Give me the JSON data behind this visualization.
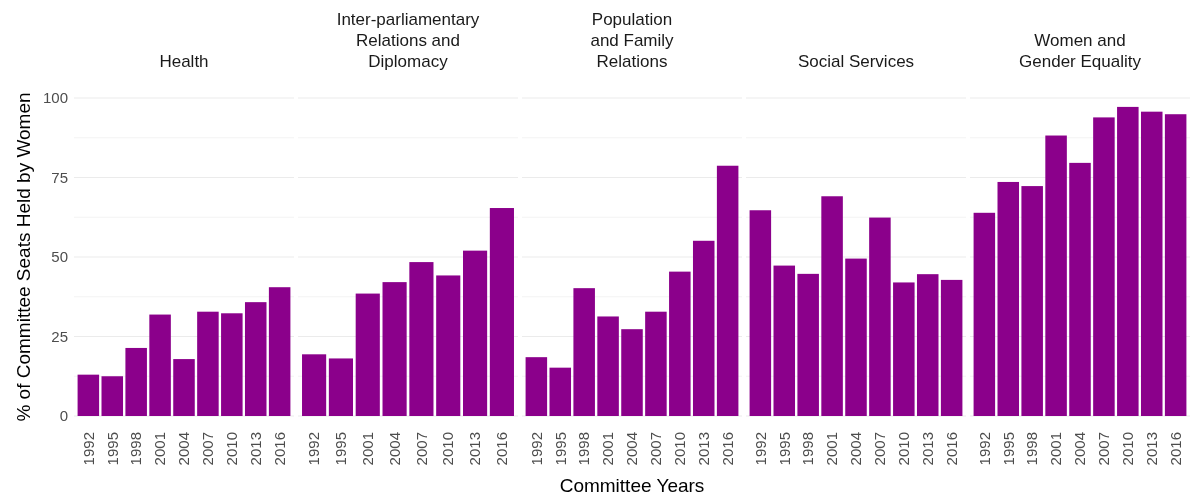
{
  "chart_data": [
    {
      "type": "bar",
      "title": "Health",
      "ylabel": "% of Committee Seats Held by Women",
      "categories": [
        "1992",
        "1995",
        "1998",
        "2001",
        "2004",
        "2007",
        "2010",
        "2013",
        "2016"
      ],
      "values": [
        13.0,
        12.5,
        21.4,
        31.9,
        17.9,
        32.8,
        32.3,
        35.8,
        40.5
      ],
      "color": "#8b008b",
      "ylim": [
        0,
        100
      ],
      "yticks": [
        0,
        {
          "value": 12.5,
          "label": null
        },
        25,
        {
          "value": 37.5,
          "label": null
        },
        50,
        {
          "value": 62.5,
          "label": null
        },
        75,
        {
          "value": 87.5,
          "label": null
        },
        100
      ],
      "grid": true
    },
    {
      "type": "bar",
      "title": "Inter-parliamentary\nRelations and\nDiplomacy",
      "categories": [
        "1992",
        "1995",
        "2001",
        "2004",
        "2007",
        "2010",
        "2013",
        "2016"
      ],
      "values": [
        19.4,
        18.1,
        38.5,
        42.1,
        48.4,
        44.2,
        52.0,
        65.4
      ],
      "color": "#8b008b",
      "ylim": [
        0,
        100
      ],
      "yticks": [
        0,
        {
          "value": 12.5,
          "label": null
        },
        25,
        {
          "value": 37.5,
          "label": null
        },
        50,
        {
          "value": 62.5,
          "label": null
        },
        75,
        {
          "value": 87.5,
          "label": null
        },
        100
      ],
      "grid": true,
      "tick_labels": "x"
    },
    {
      "type": "bar",
      "title": "Population\nand Family\nRelations",
      "xlabel": "Committee Years",
      "categories": [
        "1992",
        "1995",
        "1998",
        "2001",
        "2004",
        "2007",
        "2010",
        "2013",
        "2016"
      ],
      "values": [
        18.5,
        15.2,
        40.2,
        31.3,
        27.3,
        32.8,
        45.4,
        55.1,
        78.7
      ],
      "color": "#8b008b",
      "ylim": [
        0,
        100
      ],
      "yticks": [
        0,
        {
          "value": 12.5,
          "label": null
        },
        25,
        {
          "value": 37.5,
          "label": null
        },
        50,
        {
          "value": 62.5,
          "label": null
        },
        75,
        {
          "value": 87.5,
          "label": null
        },
        100
      ],
      "grid": true,
      "tick_labels": "x"
    },
    {
      "type": "bar",
      "title": "Social Services",
      "categories": [
        "1992",
        "1995",
        "1998",
        "2001",
        "2004",
        "2007",
        "2010",
        "2013",
        "2016"
      ],
      "values": [
        64.7,
        47.3,
        44.7,
        69.1,
        49.5,
        62.4,
        42.0,
        44.6,
        42.8
      ],
      "color": "#8b008b",
      "ylim": [
        0,
        100
      ],
      "yticks": [
        0,
        {
          "value": 12.5,
          "label": null
        },
        25,
        {
          "value": 37.5,
          "label": null
        },
        50,
        {
          "value": 62.5,
          "label": null
        },
        75,
        {
          "value": 87.5,
          "label": null
        },
        100
      ],
      "grid": true,
      "tick_labels": "x"
    },
    {
      "type": "bar",
      "title": "Women and\nGender Equality",
      "categories": [
        "1992",
        "1995",
        "1998",
        "2001",
        "2004",
        "2007",
        "2010",
        "2013",
        "2016"
      ],
      "values": [
        63.9,
        73.6,
        72.3,
        88.2,
        79.6,
        93.9,
        97.2,
        95.7,
        94.9
      ],
      "color": "#8b008b",
      "ylim": [
        0,
        100
      ],
      "yticks": [
        0,
        {
          "value": 12.5,
          "label": null
        },
        25,
        {
          "value": 37.5,
          "label": null
        },
        50,
        {
          "value": 62.5,
          "label": null
        },
        75,
        {
          "value": 87.5,
          "label": null
        },
        100
      ],
      "grid": true,
      "tick_labels": "x"
    }
  ]
}
